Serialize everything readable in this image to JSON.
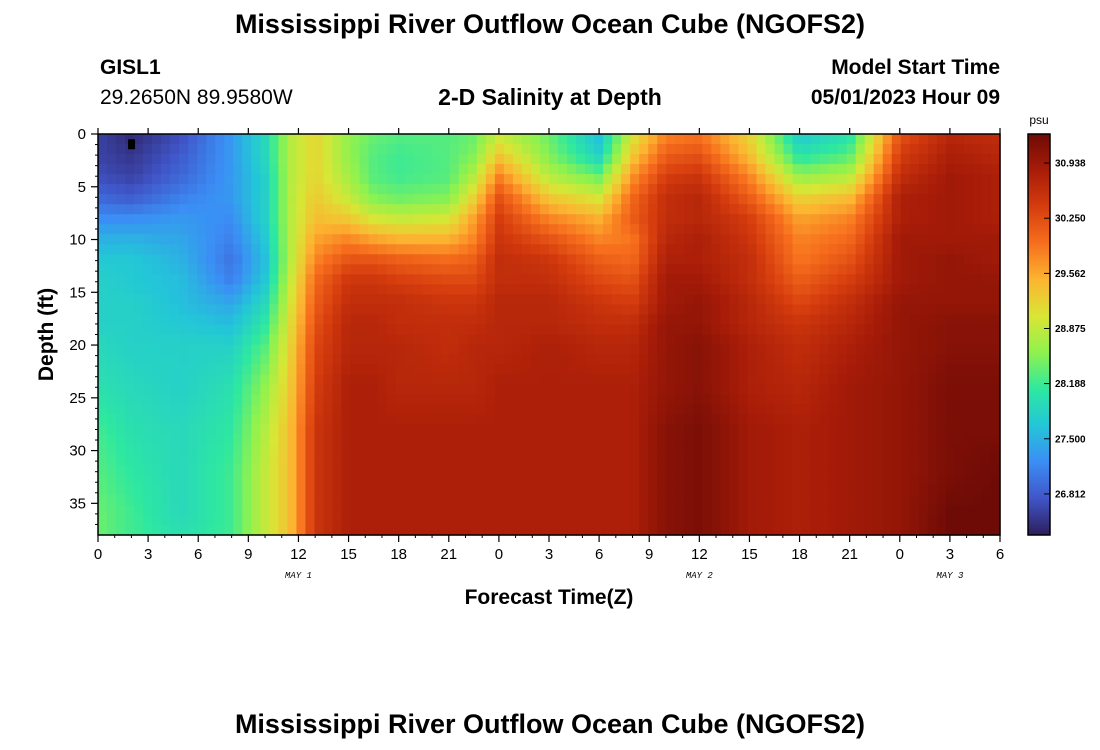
{
  "header": {
    "title": "Mississippi River Outflow Ocean Cube (NGOFS2)",
    "station": "GISL1",
    "coordinates": "29.2650N  89.9580W",
    "subtitle": "2-D Salinity at Depth",
    "model_start_label": "Model Start Time",
    "model_start_value": "05/01/2023 Hour 09",
    "second_title": "Mississippi River Outflow Ocean Cube (NGOFS2)"
  },
  "chart_data": {
    "type": "heatmap",
    "title": "2-D Salinity at Depth",
    "xlabel": "Forecast Time(Z)",
    "ylabel": "Depth (ft)",
    "x_ticks": [
      "0",
      "3",
      "6",
      "9",
      "12",
      "15",
      "18",
      "21",
      "0",
      "3",
      "6",
      "9",
      "12",
      "15",
      "18",
      "21",
      "0",
      "3",
      "6"
    ],
    "x_range_hours": [
      0,
      54
    ],
    "day_labels": [
      {
        "label": "MAY 1",
        "hour": 12
      },
      {
        "label": "MAY 2",
        "hour": 36
      },
      {
        "label": "MAY 3",
        "hour": 51
      }
    ],
    "y_ticks": [
      0,
      5,
      10,
      15,
      20,
      25,
      30,
      35
    ],
    "ylim": [
      0,
      38
    ],
    "y_inverted": true,
    "colorbar": {
      "unit": "psu",
      "ticks": [
        30.938,
        30.25,
        29.562,
        28.875,
        28.188,
        27.5,
        26.812
      ],
      "range": [
        26.3,
        31.3
      ],
      "colors": [
        "#2d1e5c",
        "#4055c8",
        "#3b8ef5",
        "#23c6d8",
        "#2ee8a0",
        "#8ff24e",
        "#d8e635",
        "#fcb531",
        "#f76f1d",
        "#d63d0e",
        "#a81c08",
        "#6e0b06"
      ]
    },
    "salinity_field": {
      "description_keyframes_hours": [
        0,
        2,
        5,
        8,
        10,
        11.5,
        13,
        15,
        16.5,
        18,
        21,
        22.5,
        24,
        27,
        30,
        32,
        34,
        36,
        39,
        42,
        45,
        48,
        51,
        54
      ],
      "depth_rows_ft": [
        0,
        2,
        4,
        6,
        8,
        10,
        12,
        14,
        16,
        18,
        20,
        24,
        28,
        32,
        36,
        38
      ]
    }
  }
}
